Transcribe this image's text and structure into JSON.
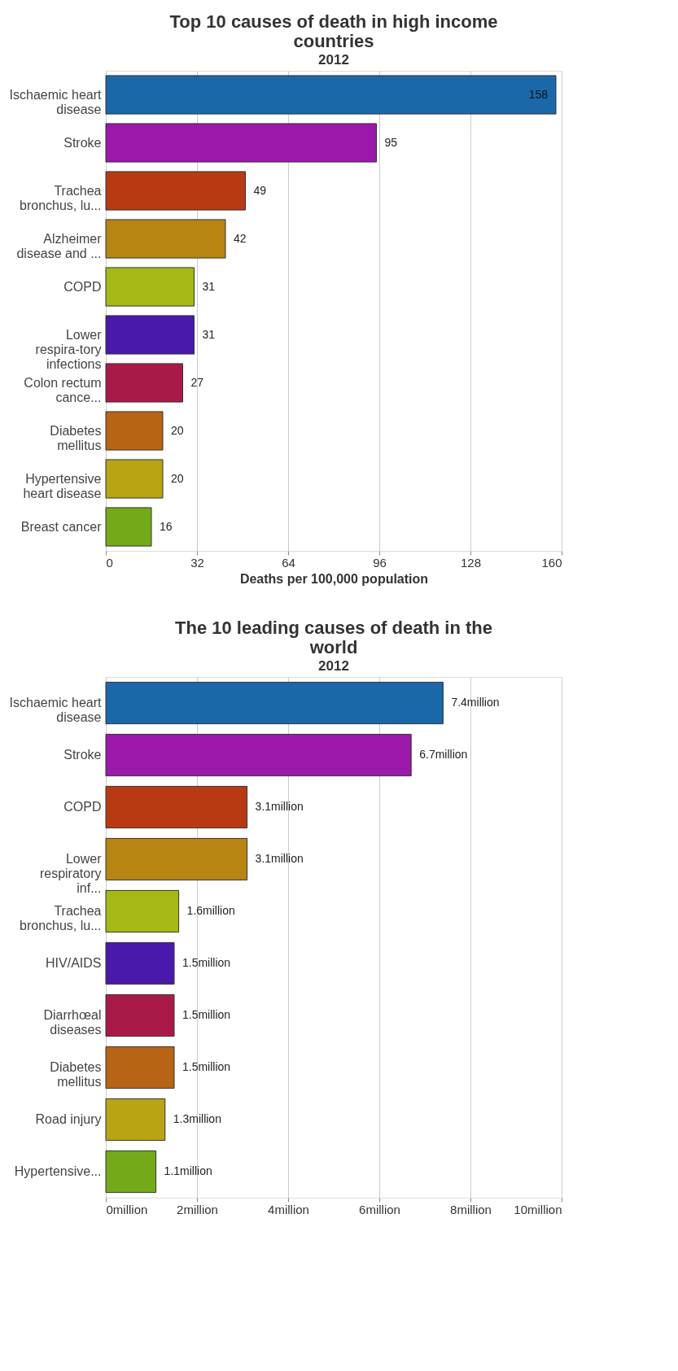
{
  "chart_data": [
    {
      "type": "bar",
      "orientation": "horizontal",
      "title": "Top 10 causes of death in high income countries",
      "subtitle": "2012",
      "xlabel": "Deaths per 100,000 population",
      "categories": [
        "Ischaemic heart disease",
        "Stroke",
        "Trachea bronchus, lu...",
        "Alzheimer disease and ...",
        "COPD",
        "Lower respira-tory infections",
        "Colon rectum cance...",
        "Diabetes mellitus",
        "Hypertensive heart disease",
        "Breast cancer"
      ],
      "values": [
        158,
        95,
        49,
        42,
        31,
        31,
        27,
        20,
        20,
        16
      ],
      "colors": [
        "#1a68aa",
        "#9a18aa",
        "#b83a12",
        "#b88412",
        "#a6b814",
        "#4a18aa",
        "#aa1a48",
        "#b86416",
        "#b8a414",
        "#74aa1a"
      ],
      "xlim": [
        0,
        160
      ],
      "xticks": [
        0,
        32,
        64,
        96,
        128,
        160
      ],
      "grid": "x",
      "data_labels": true
    },
    {
      "type": "bar",
      "orientation": "horizontal",
      "title": "The 10 leading causes of death in the world",
      "subtitle": "2012",
      "categories": [
        "Ischaemic heart disease",
        "Stroke",
        "COPD",
        "Lower respiratory inf...",
        "Trachea bronchus, lu...",
        "HIV/AIDS",
        "Diarrhœal diseases",
        "Diabetes mellitus",
        "Road injury",
        "Hypertensive..."
      ],
      "values": [
        7.4,
        6.7,
        3.1,
        3.1,
        1.6,
        1.5,
        1.5,
        1.5,
        1.3,
        1.1
      ],
      "value_labels": [
        "7.4million",
        "6.7million",
        "3.1million",
        "3.1million",
        "1.6million",
        "1.5million",
        "1.5million",
        "1.5million",
        "1.3million",
        "1.1million"
      ],
      "colors": [
        "#1a68aa",
        "#9a18aa",
        "#b83a12",
        "#b88412",
        "#a6b814",
        "#4a18aa",
        "#aa1a48",
        "#b86416",
        "#b8a414",
        "#74aa1a"
      ],
      "xlim": [
        0,
        10
      ],
      "xticks": [
        {
          "value": 0,
          "label": "0million"
        },
        {
          "value": 2,
          "label": "2million"
        },
        {
          "value": 4,
          "label": "4million"
        },
        {
          "value": 6,
          "label": "6million"
        },
        {
          "value": 8,
          "label": "8million"
        },
        {
          "value": 10,
          "label": "10million"
        }
      ],
      "grid": "x"
    }
  ]
}
